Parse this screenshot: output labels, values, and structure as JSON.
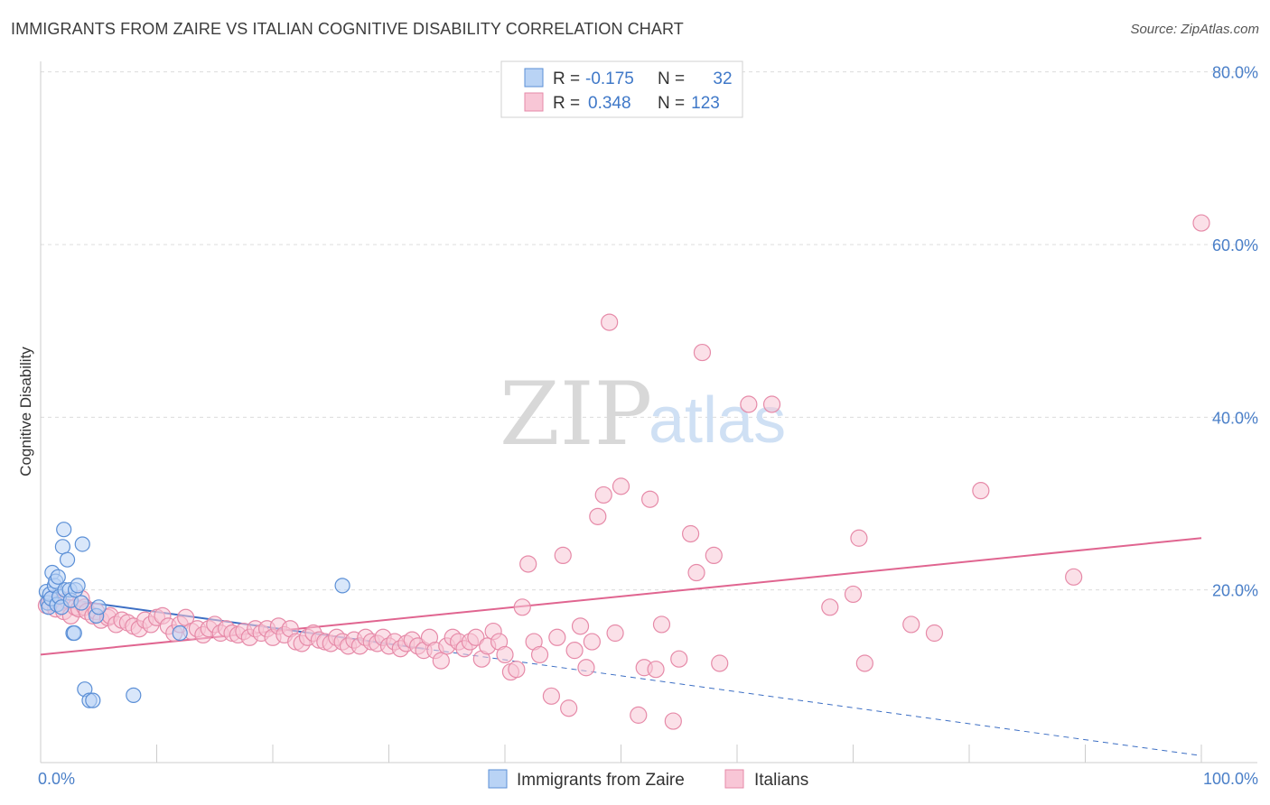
{
  "title": "IMMIGRANTS FROM ZAIRE VS ITALIAN COGNITIVE DISABILITY CORRELATION CHART",
  "source": "Source: ZipAtlas.com",
  "watermark": {
    "zip": "ZIP",
    "atlas": "atlas"
  },
  "legend_box": {
    "rows": [
      {
        "r_label": "R = ",
        "r_value": "-0.175",
        "n_label": "N = ",
        "n_value": "32"
      },
      {
        "r_label": "R = ",
        "r_value": "0.348",
        "n_label": "N = ",
        "n_value": "123"
      }
    ]
  },
  "colors": {
    "blue_fill": "#b9d3f5",
    "blue_stroke": "#5b8fd6",
    "blue_line": "#3d6fc4",
    "pink_fill": "#f8c6d6",
    "pink_stroke": "#e68aa8",
    "pink_line": "#e06590",
    "accent_text": "#3f78c8"
  },
  "chart_data": {
    "type": "scatter",
    "xlabel": "",
    "ylabel": "Cognitive Disability",
    "xlim": [
      0,
      100
    ],
    "ylim": [
      0,
      85
    ],
    "x_tick_labels": [
      "0.0%",
      "100.0%"
    ],
    "y_ticks": [
      20,
      40,
      60,
      80
    ],
    "y_tick_labels": [
      "20.0%",
      "40.0%",
      "60.0%",
      "80.0%"
    ],
    "grid": true,
    "legend_position": "bottom",
    "series": [
      {
        "name": "Immigrants from Zaire",
        "color": "blue",
        "points": [
          [
            0.5,
            19.8
          ],
          [
            0.6,
            18.5
          ],
          [
            0.7,
            18.0
          ],
          [
            0.8,
            19.5
          ],
          [
            0.9,
            19.0
          ],
          [
            1.0,
            22.0
          ],
          [
            1.2,
            20.5
          ],
          [
            1.3,
            21.0
          ],
          [
            1.4,
            18.3
          ],
          [
            1.5,
            21.5
          ],
          [
            1.6,
            19.2
          ],
          [
            1.8,
            18.0
          ],
          [
            1.9,
            25.0
          ],
          [
            2.0,
            27.0
          ],
          [
            2.1,
            20.0
          ],
          [
            2.3,
            23.5
          ],
          [
            2.5,
            20.0
          ],
          [
            2.6,
            18.8
          ],
          [
            2.8,
            15.0
          ],
          [
            2.9,
            15.0
          ],
          [
            3.0,
            20.0
          ],
          [
            3.2,
            20.5
          ],
          [
            3.5,
            18.5
          ],
          [
            3.6,
            25.3
          ],
          [
            3.8,
            8.5
          ],
          [
            4.2,
            7.2
          ],
          [
            4.5,
            7.2
          ],
          [
            4.8,
            17.0
          ],
          [
            8.0,
            7.8
          ],
          [
            12.0,
            15.0
          ],
          [
            26.0,
            20.5
          ],
          [
            5.0,
            18.0
          ]
        ],
        "trendline": {
          "x": [
            0,
            33
          ],
          "y": [
            19.3,
            13.2
          ],
          "dashed_extension": {
            "x": [
              33,
              100
            ],
            "y": [
              13.2,
              0.8
            ]
          }
        }
      },
      {
        "name": "Italians",
        "color": "pink",
        "points": [
          [
            0.5,
            18.2
          ],
          [
            0.8,
            18.5
          ],
          [
            1.0,
            19.0
          ],
          [
            1.3,
            17.8
          ],
          [
            1.6,
            18.5
          ],
          [
            2.0,
            17.5
          ],
          [
            2.3,
            18.8
          ],
          [
            2.6,
            17.0
          ],
          [
            3.0,
            18.0
          ],
          [
            3.3,
            17.8
          ],
          [
            3.5,
            19.0
          ],
          [
            3.8,
            18.0
          ],
          [
            4.0,
            17.5
          ],
          [
            4.5,
            17.0
          ],
          [
            4.8,
            17.5
          ],
          [
            5.2,
            16.5
          ],
          [
            5.8,
            16.8
          ],
          [
            6.0,
            17.0
          ],
          [
            6.5,
            16.0
          ],
          [
            7.0,
            16.5
          ],
          [
            7.5,
            16.2
          ],
          [
            8.0,
            15.8
          ],
          [
            8.5,
            15.5
          ],
          [
            9.0,
            16.5
          ],
          [
            9.5,
            16.0
          ],
          [
            10.0,
            16.8
          ],
          [
            10.5,
            17.0
          ],
          [
            11.0,
            15.8
          ],
          [
            11.5,
            15.0
          ],
          [
            12.0,
            16.0
          ],
          [
            12.5,
            16.8
          ],
          [
            13.0,
            15.2
          ],
          [
            13.5,
            15.5
          ],
          [
            14.0,
            14.8
          ],
          [
            14.5,
            15.5
          ],
          [
            15.0,
            16.0
          ],
          [
            15.5,
            15.0
          ],
          [
            16.0,
            15.5
          ],
          [
            16.5,
            15.0
          ],
          [
            17.0,
            14.8
          ],
          [
            17.5,
            15.2
          ],
          [
            18.0,
            14.5
          ],
          [
            18.5,
            15.5
          ],
          [
            19.0,
            15.0
          ],
          [
            19.5,
            15.5
          ],
          [
            20.0,
            14.5
          ],
          [
            20.5,
            15.8
          ],
          [
            21.0,
            14.8
          ],
          [
            21.5,
            15.5
          ],
          [
            22.0,
            14.0
          ],
          [
            22.5,
            13.8
          ],
          [
            23.0,
            14.5
          ],
          [
            23.5,
            15.0
          ],
          [
            24.0,
            14.2
          ],
          [
            24.5,
            14.0
          ],
          [
            25.0,
            13.8
          ],
          [
            25.5,
            14.5
          ],
          [
            26.0,
            14.0
          ],
          [
            26.5,
            13.5
          ],
          [
            27.0,
            14.2
          ],
          [
            27.5,
            13.5
          ],
          [
            28.0,
            14.5
          ],
          [
            28.5,
            14.0
          ],
          [
            29.0,
            13.8
          ],
          [
            29.5,
            14.5
          ],
          [
            30.0,
            13.5
          ],
          [
            30.5,
            14.0
          ],
          [
            31.0,
            13.2
          ],
          [
            31.5,
            13.8
          ],
          [
            32.0,
            14.2
          ],
          [
            32.5,
            13.5
          ],
          [
            33.0,
            13.0
          ],
          [
            33.5,
            14.5
          ],
          [
            34.0,
            13.0
          ],
          [
            34.5,
            11.8
          ],
          [
            35.0,
            13.5
          ],
          [
            35.5,
            14.5
          ],
          [
            36.0,
            14.0
          ],
          [
            36.5,
            13.2
          ],
          [
            37.0,
            14.0
          ],
          [
            37.5,
            14.5
          ],
          [
            38.0,
            12.0
          ],
          [
            38.5,
            13.5
          ],
          [
            39.0,
            15.2
          ],
          [
            39.5,
            14.0
          ],
          [
            40.0,
            12.5
          ],
          [
            40.5,
            10.5
          ],
          [
            41.0,
            10.8
          ],
          [
            41.5,
            18.0
          ],
          [
            42.0,
            23.0
          ],
          [
            42.5,
            14.0
          ],
          [
            43.0,
            12.5
          ],
          [
            44.0,
            7.7
          ],
          [
            44.5,
            14.5
          ],
          [
            45.0,
            24.0
          ],
          [
            45.5,
            6.3
          ],
          [
            46.0,
            13.0
          ],
          [
            46.5,
            15.8
          ],
          [
            47.0,
            11.0
          ],
          [
            47.5,
            14.0
          ],
          [
            48.0,
            28.5
          ],
          [
            48.5,
            31.0
          ],
          [
            49.0,
            51.0
          ],
          [
            49.5,
            15.0
          ],
          [
            50.0,
            32.0
          ],
          [
            51.5,
            5.5
          ],
          [
            52.0,
            11.0
          ],
          [
            52.5,
            30.5
          ],
          [
            53.0,
            10.8
          ],
          [
            53.5,
            16.0
          ],
          [
            54.5,
            4.8
          ],
          [
            55.0,
            12.0
          ],
          [
            56.0,
            26.5
          ],
          [
            56.5,
            22.0
          ],
          [
            57.0,
            47.5
          ],
          [
            58.0,
            24.0
          ],
          [
            58.5,
            11.5
          ],
          [
            61.0,
            41.5
          ],
          [
            63.0,
            41.5
          ],
          [
            68.0,
            18.0
          ],
          [
            70.0,
            19.5
          ],
          [
            70.5,
            26.0
          ],
          [
            71.0,
            11.5
          ],
          [
            75.0,
            16.0
          ],
          [
            77.0,
            15.0
          ],
          [
            81.0,
            31.5
          ],
          [
            89.0,
            21.5
          ],
          [
            100.0,
            62.5
          ]
        ],
        "trendline": {
          "x": [
            0,
            100
          ],
          "y": [
            12.5,
            26.0
          ]
        }
      }
    ]
  }
}
